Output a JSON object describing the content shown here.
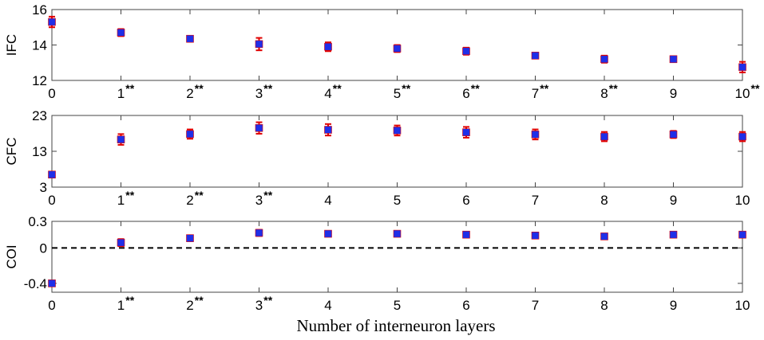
{
  "colors": {
    "marker": "#1f2fe8",
    "errorbar": "#e00000",
    "axis": "#000000"
  },
  "xlabel": "Number of interneuron layers",
  "chart_data": [
    {
      "type": "scatter",
      "ylabel": "IFC",
      "xlim": [
        0,
        10
      ],
      "ylim": [
        12,
        16
      ],
      "yticks": [
        "12",
        "14",
        "16"
      ],
      "x": [
        0,
        1,
        2,
        3,
        4,
        5,
        6,
        7,
        8,
        9,
        10
      ],
      "xtick_labels": [
        "0",
        "1",
        "2",
        "3",
        "4",
        "5",
        "6",
        "7",
        "8",
        "9",
        "10"
      ],
      "significant": [
        false,
        true,
        true,
        true,
        true,
        true,
        true,
        true,
        true,
        false,
        true
      ],
      "significance_marker": "**",
      "y": [
        15.3,
        14.7,
        14.35,
        14.05,
        13.9,
        13.8,
        13.65,
        13.4,
        13.2,
        13.2,
        12.75
      ],
      "err": [
        0.3,
        0.2,
        0.1,
        0.35,
        0.25,
        0.2,
        0.2,
        0.1,
        0.2,
        0.1,
        0.3
      ]
    },
    {
      "type": "scatter",
      "ylabel": "CFC",
      "xlim": [
        0,
        10
      ],
      "ylim": [
        3,
        23
      ],
      "yticks": [
        "3",
        "13",
        "23"
      ],
      "x": [
        0,
        1,
        2,
        3,
        4,
        5,
        6,
        7,
        8,
        9,
        10
      ],
      "xtick_labels": [
        "0",
        "1",
        "2",
        "3",
        "4",
        "5",
        "6",
        "7",
        "8",
        "9",
        "10"
      ],
      "significant": [
        false,
        true,
        true,
        true,
        false,
        false,
        false,
        false,
        false,
        false,
        false
      ],
      "significance_marker": "**",
      "y": [
        6.5,
        16.3,
        17.8,
        19.5,
        19.0,
        18.8,
        18.3,
        17.7,
        17.1,
        17.7,
        17.1
      ],
      "err": [
        0.3,
        1.5,
        1.3,
        1.6,
        1.6,
        1.4,
        1.5,
        1.4,
        1.3,
        1.0,
        1.3
      ]
    },
    {
      "type": "scatter",
      "ylabel": "COI",
      "xlim": [
        0,
        10
      ],
      "ylim": [
        -0.5,
        0.3
      ],
      "yticks": [
        "-0.4",
        "0",
        "0.3"
      ],
      "x": [
        0,
        1,
        2,
        3,
        4,
        5,
        6,
        7,
        8,
        9,
        10
      ],
      "xtick_labels": [
        "0",
        "1",
        "2",
        "3",
        "4",
        "5",
        "6",
        "7",
        "8",
        "9",
        "10"
      ],
      "significant": [
        false,
        true,
        true,
        true,
        false,
        false,
        false,
        false,
        false,
        false,
        false
      ],
      "significance_marker": "**",
      "reference_line": 0,
      "y": [
        -0.4,
        0.06,
        0.11,
        0.17,
        0.16,
        0.16,
        0.15,
        0.14,
        0.13,
        0.15,
        0.15
      ],
      "err": [
        0.02,
        0.04,
        0.025,
        0.035,
        0.025,
        0.025,
        0.025,
        0.025,
        0.025,
        0.02,
        0.03
      ]
    }
  ]
}
